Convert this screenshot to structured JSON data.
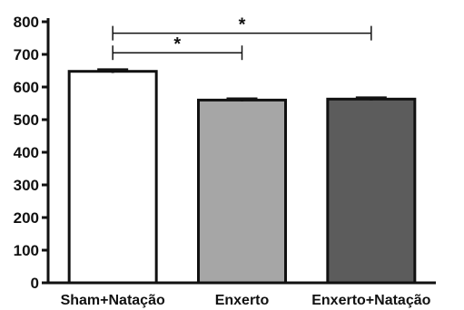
{
  "chart_data": {
    "type": "bar",
    "categories": [
      "Sham+Natação",
      "Enxerto",
      "Enxerto+Natação"
    ],
    "values": [
      648,
      560,
      563
    ],
    "errors": [
      5,
      4,
      4
    ],
    "bar_colors": [
      "#ffffff",
      "#a6a6a6",
      "#5c5c5c"
    ],
    "ylim": [
      0,
      800
    ],
    "yticks": [
      "0",
      "100",
      "200",
      "300",
      "400",
      "500",
      "600",
      "700",
      "800"
    ],
    "significance": [
      {
        "from": 0,
        "to": 2,
        "label": "*",
        "y": 765
      },
      {
        "from": 0,
        "to": 1,
        "label": "*",
        "y": 705
      }
    ],
    "grid": false,
    "title": "",
    "xlabel": "",
    "ylabel": ""
  }
}
